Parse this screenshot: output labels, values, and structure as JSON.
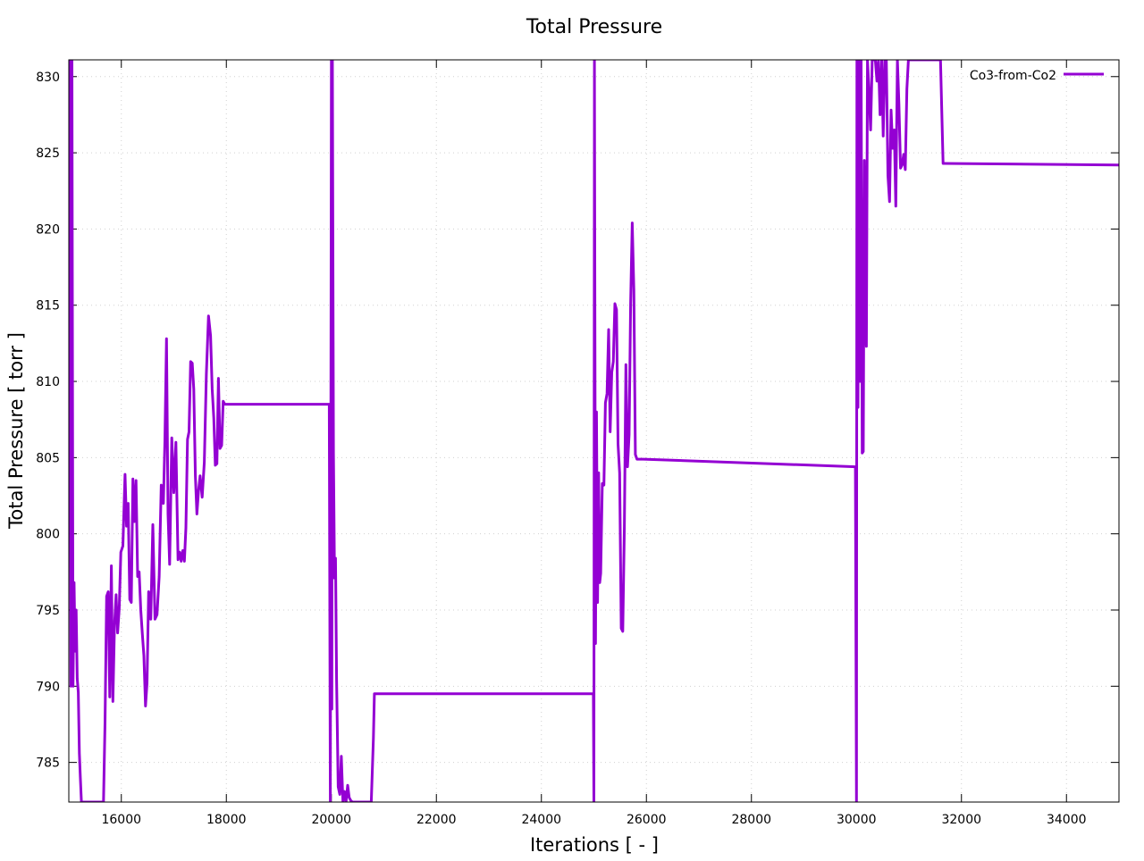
{
  "chart_data": {
    "type": "line",
    "title": "Total Pressure",
    "xlabel": "Iterations [ - ]",
    "ylabel": "Total Pressure [ torr ]",
    "xlim": [
      15000,
      35000
    ],
    "ylim": [
      782.4,
      831.1
    ],
    "grid": true,
    "legend_position": "top-right",
    "x_ticks": [
      16000,
      18000,
      20000,
      22000,
      24000,
      26000,
      28000,
      30000,
      32000,
      34000
    ],
    "y_ticks": [
      785,
      790,
      795,
      800,
      805,
      810,
      815,
      820,
      825,
      830
    ],
    "series": [
      {
        "name": "Co3-from-Co2",
        "color": "#9400d3",
        "x": [
          15000,
          15020,
          15040,
          15060,
          15080,
          15100,
          15120,
          15140,
          15160,
          15180,
          15200,
          15220,
          15240,
          15660,
          15690,
          15720,
          15750,
          15780,
          15810,
          15840,
          15870,
          15900,
          15930,
          15960,
          15990,
          16030,
          16070,
          16100,
          16130,
          16160,
          16190,
          16220,
          16250,
          16280,
          16310,
          16340,
          16370,
          16400,
          16430,
          16460,
          16490,
          16520,
          16560,
          16600,
          16640,
          16680,
          16720,
          16760,
          16800,
          16830,
          16860,
          16890,
          16920,
          16960,
          17000,
          17040,
          17080,
          17110,
          17140,
          17170,
          17200,
          17230,
          17260,
          17290,
          17320,
          17350,
          17380,
          17410,
          17440,
          17470,
          17500,
          17540,
          17580,
          17620,
          17660,
          17700,
          17730,
          17760,
          17790,
          17820,
          17850,
          17880,
          17910,
          17940,
          17970,
          18000,
          18030,
          18060,
          18090,
          18120,
          18150,
          18180,
          18210,
          18240,
          18270,
          18300,
          18330,
          18360,
          18390,
          18420,
          18450,
          19960,
          19980,
          20000,
          20010,
          20020,
          20040,
          20060,
          20080,
          20100,
          20130,
          20160,
          20190,
          20220,
          20250,
          20280,
          20310,
          20340,
          20370,
          20400,
          20430,
          20460,
          20490,
          20520,
          20560,
          20600,
          20640,
          20680,
          20720,
          20760,
          20800,
          20820,
          24990,
          25000,
          25010,
          25030,
          25050,
          25070,
          25090,
          25110,
          25130,
          25160,
          25190,
          25220,
          25250,
          25280,
          25310,
          25340,
          25370,
          25400,
          25430,
          25460,
          25490,
          25520,
          25550,
          25580,
          25610,
          25640,
          25670,
          25700,
          25730,
          25760,
          25790,
          25820,
          25850,
          25880,
          25910,
          25940,
          29980,
          30000,
          30010,
          30030,
          30050,
          30070,
          30090,
          30110,
          30130,
          30150,
          30170,
          30190,
          30210,
          30240,
          30270,
          30300,
          30330,
          30360,
          30390,
          30420,
          30450,
          30480,
          30510,
          30540,
          30570,
          30600,
          30630,
          30660,
          30690,
          30720,
          30750,
          30780,
          30810,
          30840,
          30870,
          30900,
          30930,
          30960,
          30990,
          31020,
          31050,
          31080,
          31110,
          31140,
          31170,
          31200,
          31230,
          31260,
          31290,
          31320,
          31350,
          31380,
          31410,
          31440,
          31470,
          31500,
          31550,
          31600,
          31650,
          31680,
          35000
        ],
        "y": [
          822.9,
          831.1,
          790,
          831.1,
          790,
          796.8,
          792.3,
          795,
          790.5,
          789.6,
          785.6,
          784,
          782.4,
          782.4,
          787.6,
          795.9,
          796.2,
          789.3,
          797.9,
          789,
          794,
          796,
          793.5,
          795.1,
          798.8,
          799.2,
          803.9,
          800.5,
          802,
          795.7,
          795.5,
          803.6,
          800.8,
          803.5,
          797.2,
          797.5,
          795,
          793.4,
          792,
          788.7,
          790.2,
          796.2,
          794.4,
          800.6,
          794.4,
          794.7,
          797.2,
          803.2,
          802,
          806.1,
          812.8,
          801.3,
          798,
          806.3,
          802.7,
          806,
          798.3,
          798.8,
          798.2,
          798.9,
          798.2,
          800.4,
          806.2,
          806.7,
          811.3,
          811.2,
          809.5,
          803.8,
          801.3,
          802.8,
          803.8,
          802.4,
          804.7,
          810.5,
          814.3,
          813,
          809.5,
          807.6,
          804.5,
          804.6,
          810.2,
          805.6,
          805.8,
          808.7,
          808.5,
          808.5,
          808.5,
          808.5,
          808.5,
          808.5,
          808.5,
          808.5,
          808.5,
          808.5,
          808.5,
          808.5,
          808.5,
          808.5,
          808.5,
          808.5,
          808.5,
          808.5,
          782.4,
          831.1,
          788.5,
          831.1,
          805.3,
          797.1,
          798.4,
          790.4,
          783.4,
          782.9,
          785.4,
          782.4,
          783.1,
          782.4,
          783.5,
          782.7,
          782.5,
          782.4,
          782.4,
          782.4,
          782.4,
          782.4,
          782.4,
          782.4,
          782.4,
          782.4,
          782.4,
          782.4,
          786.6,
          789.5,
          789.5,
          782.4,
          831.1,
          792.8,
          808,
          795.5,
          804,
          796.8,
          797.4,
          803.3,
          803.2,
          808.6,
          809.2,
          813.4,
          806.7,
          810.6,
          811.3,
          815.1,
          814.7,
          805.9,
          804,
          793.8,
          793.6,
          800.5,
          811.1,
          804.4,
          806.5,
          815.1,
          820.4,
          816,
          805.2,
          804.9,
          804.9,
          804.9,
          804.9,
          804.9,
          804.4,
          782.4,
          831.1,
          808.3,
          831.1,
          810,
          831.1,
          805.3,
          805.4,
          824.5,
          815.2,
          812.3,
          831.1,
          829,
          826.5,
          831.1,
          831.1,
          831.1,
          829.7,
          831.1,
          827.5,
          831.1,
          826.1,
          831.1,
          831.1,
          823.5,
          821.8,
          827.8,
          825.3,
          826.5,
          821.5,
          831.1,
          828.2,
          824,
          824.2,
          824.9,
          823.9,
          829.2,
          831.1,
          831.1,
          831.1,
          831.1,
          831.1,
          831.1,
          831.1,
          831.1,
          831.1,
          831.1,
          831.1,
          831.1,
          831.1,
          831.1,
          831.1,
          831.1,
          831.1,
          831.1,
          831.1,
          831.1,
          824.3,
          824.3,
          824.2
        ]
      }
    ]
  }
}
